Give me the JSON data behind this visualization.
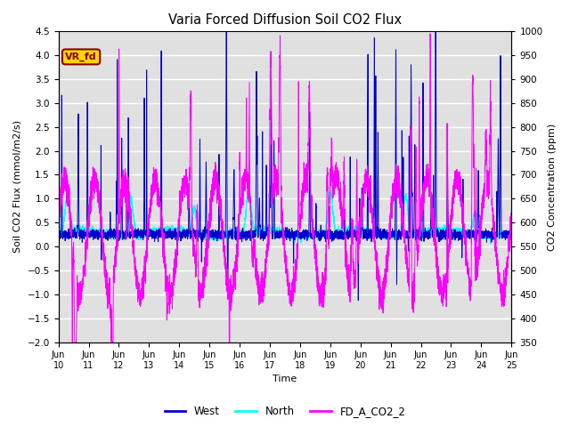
{
  "title": "Varia Forced Diffusion Soil CO2 Flux",
  "xlabel": "Time",
  "ylabel_left": "Soil CO2 Flux (mmol/m2/s)",
  "ylabel_right": "CO2 Concentration (ppm)",
  "ylim_left": [
    -2.0,
    4.5
  ],
  "ylim_right": [
    350,
    1000
  ],
  "xtick_labels": [
    "Jun\n10",
    "Jun\n11",
    "Jun\n12",
    "Jun\n13",
    "Jun\n14",
    "Jun\n15",
    "Jun\n16",
    "Jun\n17",
    "Jun\n18",
    "Jun\n19",
    "Jun\n20",
    "Jun\n21",
    "Jun\n22",
    "Jun\n23",
    "Jun\n24",
    "Jun\n25"
  ],
  "color_west": "#0000CD",
  "color_north": "#00FFFF",
  "color_co2": "#FF00FF",
  "legend_label_west": "West",
  "legend_label_north": "North",
  "legend_label_co2": "FD_A_CO2_2",
  "annotation_text": "VR_fd",
  "annotation_color": "#8B0000",
  "annotation_bg": "#FFD700",
  "background_color": "#E0E0E0",
  "grid_color": "#FFFFFF",
  "yticks_left": [
    4.5,
    4.0,
    3.5,
    3.0,
    2.5,
    2.0,
    1.5,
    1.0,
    0.5,
    0.0,
    -0.5,
    -1.0,
    -1.5,
    -2.0
  ],
  "yticks_right": [
    1000,
    950,
    900,
    850,
    800,
    750,
    700,
    650,
    600,
    550,
    500,
    450,
    400,
    350
  ],
  "seed": 42,
  "n_points": 5000,
  "n_days": 15
}
